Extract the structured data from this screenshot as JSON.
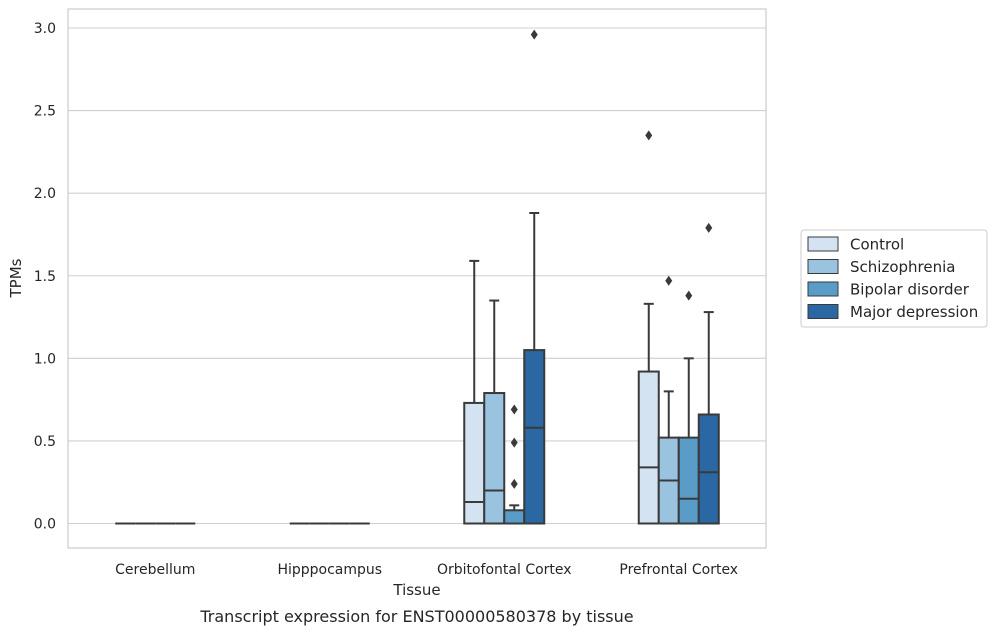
{
  "caption": "Transcript expression for ENST00000580378 by tissue",
  "chart_data": {
    "type": "box",
    "xlabel": "Tissue",
    "ylabel": "TPMs",
    "ylim": [
      -0.14,
      3.11
    ],
    "yticks": [
      0.0,
      0.5,
      1.0,
      1.5,
      2.0,
      2.5,
      3.0
    ],
    "ytick_labels": [
      "0.0",
      "0.5",
      "1.0",
      "1.5",
      "2.0",
      "2.5",
      "3.0"
    ],
    "categories": [
      "Cerebellum",
      "Hipppocampus",
      "Orbitofontal Cortex",
      "Prefrontal Cortex"
    ],
    "grid": "horizontal",
    "legend_position": "right",
    "series": [
      {
        "name": "Control",
        "color": "#d4e3f1",
        "boxes": [
          {
            "whislo": 0,
            "q1": 0,
            "med": 0,
            "q3": 0,
            "whishi": 0,
            "fliers": []
          },
          {
            "whislo": 0,
            "q1": 0,
            "med": 0,
            "q3": 0,
            "whishi": 0,
            "fliers": []
          },
          {
            "whislo": 0,
            "q1": 0,
            "med": 0.13,
            "q3": 0.73,
            "whishi": 1.59,
            "fliers": []
          },
          {
            "whislo": 0,
            "q1": 0,
            "med": 0.34,
            "q3": 0.92,
            "whishi": 1.33,
            "fliers": [
              2.35
            ]
          }
        ]
      },
      {
        "name": "Schizophrenia",
        "color": "#9ac3df",
        "boxes": [
          {
            "whislo": 0,
            "q1": 0,
            "med": 0,
            "q3": 0,
            "whishi": 0,
            "fliers": []
          },
          {
            "whislo": 0,
            "q1": 0,
            "med": 0,
            "q3": 0,
            "whishi": 0,
            "fliers": []
          },
          {
            "whislo": 0,
            "q1": 0,
            "med": 0.2,
            "q3": 0.79,
            "whishi": 1.35,
            "fliers": []
          },
          {
            "whislo": 0,
            "q1": 0,
            "med": 0.26,
            "q3": 0.52,
            "whishi": 0.8,
            "fliers": [
              1.47
            ]
          }
        ]
      },
      {
        "name": "Bipolar disorder",
        "color": "#5a9cc8",
        "boxes": [
          {
            "whislo": 0,
            "q1": 0,
            "med": 0,
            "q3": 0,
            "whishi": 0,
            "fliers": []
          },
          {
            "whislo": 0,
            "q1": 0,
            "med": 0,
            "q3": 0,
            "whishi": 0,
            "fliers": []
          },
          {
            "whislo": 0,
            "q1": 0,
            "med": 0.0,
            "q3": 0.08,
            "whishi": 0.11,
            "fliers": [
              0.24,
              0.49,
              0.69
            ]
          },
          {
            "whislo": 0,
            "q1": 0,
            "med": 0.15,
            "q3": 0.52,
            "whishi": 1.0,
            "fliers": [
              1.38
            ]
          }
        ]
      },
      {
        "name": "Major depression",
        "color": "#2a67a3",
        "boxes": [
          {
            "whislo": 0,
            "q1": 0,
            "med": 0,
            "q3": 0,
            "whishi": 0,
            "fliers": []
          },
          {
            "whislo": 0,
            "q1": 0,
            "med": 0,
            "q3": 0,
            "whishi": 0,
            "fliers": []
          },
          {
            "whislo": 0,
            "q1": 0,
            "med": 0.58,
            "q3": 1.05,
            "whishi": 1.88,
            "fliers": [
              2.96
            ]
          },
          {
            "whislo": 0,
            "q1": 0,
            "med": 0.31,
            "q3": 0.66,
            "whishi": 1.28,
            "fliers": [
              1.79
            ]
          }
        ]
      }
    ]
  }
}
